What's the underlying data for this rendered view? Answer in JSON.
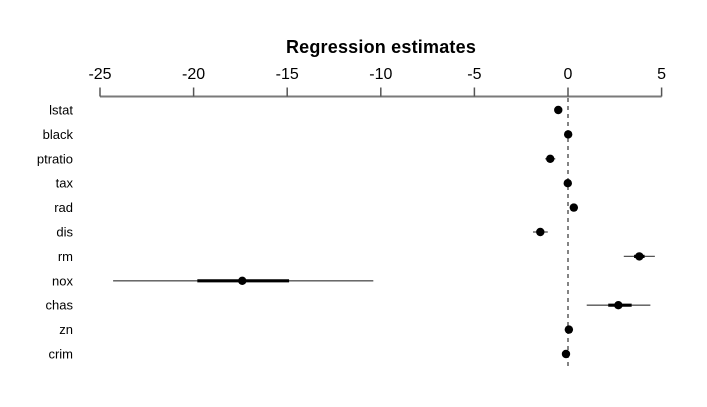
{
  "title": "Regression estimates",
  "colors": {
    "background": "#ffffff",
    "text": "#000000",
    "axis": "#7a7a7a",
    "tick": "#555555",
    "zero_line": "#333333",
    "point": "#000000",
    "inner_interval": "#000000",
    "outer_interval": "#555555"
  },
  "chart_data": {
    "type": "scatter",
    "subtype": "coefficient-dot-whisker-plot",
    "title": "Regression estimates",
    "xlabel": "",
    "ylabel": "",
    "xlim": [
      -25,
      5
    ],
    "x_ticks": [
      -25,
      -20,
      -15,
      -10,
      -5,
      0,
      5
    ],
    "zero_line": 0,
    "grid": false,
    "legend": null,
    "orientation": "horizontal",
    "note": "Each row: point estimate with thick (inner) and thin (outer) interval segments; dashed vertical reference line at 0; x-axis drawn on top.",
    "rows": [
      {
        "label": "lstat",
        "estimate": -0.52,
        "inner_ci": [
          -0.56,
          -0.49
        ],
        "outer_ci": [
          -0.62,
          -0.43
        ]
      },
      {
        "label": "black",
        "estimate": 0.009,
        "inner_ci": [
          0.007,
          0.011
        ],
        "outer_ci": [
          0.004,
          0.015
        ]
      },
      {
        "label": "ptratio",
        "estimate": -0.95,
        "inner_ci": [
          -1.04,
          -0.86
        ],
        "outer_ci": [
          -1.22,
          -0.68
        ]
      },
      {
        "label": "tax",
        "estimate": -0.012,
        "inner_ci": [
          -0.015,
          -0.01
        ],
        "outer_ci": [
          -0.02,
          -0.005
        ]
      },
      {
        "label": "rad",
        "estimate": 0.31,
        "inner_ci": [
          0.26,
          0.35
        ],
        "outer_ci": [
          0.18,
          0.44
        ]
      },
      {
        "label": "dis",
        "estimate": -1.48,
        "inner_ci": [
          -1.61,
          -1.34
        ],
        "outer_ci": [
          -1.87,
          -1.08
        ]
      },
      {
        "label": "rm",
        "estimate": 3.81,
        "inner_ci": [
          3.53,
          4.09
        ],
        "outer_ci": [
          2.98,
          4.64
        ]
      },
      {
        "label": "nox",
        "estimate": -17.4,
        "inner_ci": [
          -19.8,
          -14.9
        ],
        "outer_ci": [
          -24.3,
          -10.4
        ]
      },
      {
        "label": "chas",
        "estimate": 2.69,
        "inner_ci": [
          2.15,
          3.4
        ],
        "outer_ci": [
          1.0,
          4.4
        ]
      },
      {
        "label": "zn",
        "estimate": 0.046,
        "inner_ci": [
          0.037,
          0.055
        ],
        "outer_ci": [
          0.019,
          0.073
        ]
      },
      {
        "label": "crim",
        "estimate": -0.108,
        "inner_ci": [
          -0.13,
          -0.086
        ],
        "outer_ci": [
          -0.173,
          -0.044
        ]
      }
    ]
  }
}
